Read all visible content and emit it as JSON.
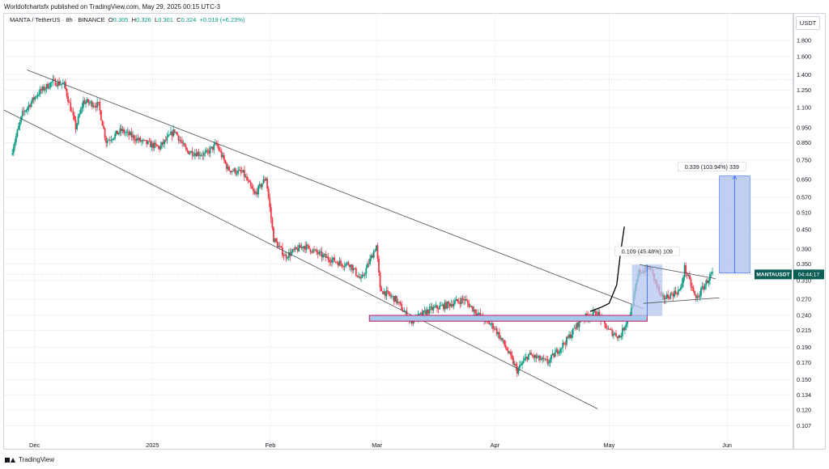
{
  "header": {
    "publisher_text": "Worldofchartsfx published on TradingView.com, May 29, 2025 00:15 UTC-3"
  },
  "symbol_line": {
    "symbol": "MANTA / TetherUS · 8h · BINANCE",
    "open_label": "O",
    "open_value": "0.305",
    "high_label": "H",
    "high_value": "0.326",
    "low_label": "L",
    "low_value": "0.301",
    "close_label": "C",
    "close_value": "0.324",
    "change_value": "+0.019 (+6.23%)"
  },
  "currency_button": "USDT",
  "footer": {
    "brand": "TradingView"
  },
  "colors": {
    "up": "#089981",
    "down": "#f23645",
    "channel": "#4a4e5a",
    "box_fill": "#a6c8ec",
    "box_border": "#c2185b",
    "measure": "#2962ff",
    "measure_fill": "#b4c6f0",
    "price_tag": "#0b5e55"
  },
  "chart_data": {
    "type": "candlestick",
    "scale": "log",
    "y_ticks": [
      "1.800",
      "1.600",
      "1.400",
      "1.250",
      "1.100",
      "0.950",
      "0.850",
      "0.750",
      "0.650",
      "0.570",
      "0.510",
      "0.450",
      "0.390",
      "0.350",
      "0.310",
      "0.270",
      "0.240",
      "0.215",
      "0.190",
      "0.170",
      "0.150",
      "0.134",
      "0.120",
      "0.107"
    ],
    "x_ticks": [
      "Dec",
      "2025",
      "Feb",
      "Mar",
      "Apr",
      "May",
      "Jun"
    ],
    "current_price_label": {
      "symbol": "MANTAUSDT",
      "countdown": "04:44:17",
      "price": 0.324
    },
    "annotations": {
      "range_measure": "0.109 (45.48%) 109",
      "target_measure": "0.339 (103.94%) 339"
    },
    "key_prices": {
      "support_zone_low": 0.23,
      "support_zone_high": 0.24,
      "range_low": 0.239,
      "range_high": 0.348,
      "target_low": 0.327,
      "target_high": 0.666
    },
    "price_path": [
      [
        "2024-11-25",
        0.78
      ],
      [
        "2024-11-28",
        1.05
      ],
      [
        "2024-12-02",
        1.22
      ],
      [
        "2024-12-06",
        1.33
      ],
      [
        "2024-12-09",
        1.3
      ],
      [
        "2024-12-12",
        0.95
      ],
      [
        "2024-12-14",
        1.15
      ],
      [
        "2024-12-18",
        1.12
      ],
      [
        "2024-12-20",
        0.86
      ],
      [
        "2024-12-24",
        0.93
      ],
      [
        "2024-12-29",
        0.86
      ],
      [
        "2025-01-03",
        0.82
      ],
      [
        "2025-01-07",
        0.93
      ],
      [
        "2025-01-10",
        0.8
      ],
      [
        "2025-01-15",
        0.78
      ],
      [
        "2025-01-18",
        0.84
      ],
      [
        "2025-01-21",
        0.7
      ],
      [
        "2025-01-25",
        0.68
      ],
      [
        "2025-01-28",
        0.58
      ],
      [
        "2025-01-31",
        0.66
      ],
      [
        "2025-02-02",
        0.42
      ],
      [
        "2025-02-05",
        0.37
      ],
      [
        "2025-02-10",
        0.4
      ],
      [
        "2025-02-15",
        0.37
      ],
      [
        "2025-02-20",
        0.35
      ],
      [
        "2025-02-22",
        0.35
      ],
      [
        "2025-02-25",
        0.31
      ],
      [
        "2025-03-01",
        0.4
      ],
      [
        "2025-03-02",
        0.29
      ],
      [
        "2025-03-06",
        0.27
      ],
      [
        "2025-03-10",
        0.23
      ],
      [
        "2025-03-15",
        0.25
      ],
      [
        "2025-03-20",
        0.26
      ],
      [
        "2025-03-24",
        0.27
      ],
      [
        "2025-03-28",
        0.24
      ],
      [
        "2025-04-01",
        0.22
      ],
      [
        "2025-04-04",
        0.19
      ],
      [
        "2025-04-07",
        0.16
      ],
      [
        "2025-04-10",
        0.18
      ],
      [
        "2025-04-15",
        0.17
      ],
      [
        "2025-04-20",
        0.2
      ],
      [
        "2025-04-24",
        0.235
      ],
      [
        "2025-04-28",
        0.245
      ],
      [
        "2025-05-01",
        0.215
      ],
      [
        "2025-05-04",
        0.205
      ],
      [
        "2025-05-07",
        0.25
      ],
      [
        "2025-05-09",
        0.33
      ],
      [
        "2025-05-12",
        0.34
      ],
      [
        "2025-05-15",
        0.27
      ],
      [
        "2025-05-20",
        0.29
      ],
      [
        "2025-05-21",
        0.34
      ],
      [
        "2025-05-24",
        0.27
      ],
      [
        "2025-05-28",
        0.324
      ]
    ]
  }
}
